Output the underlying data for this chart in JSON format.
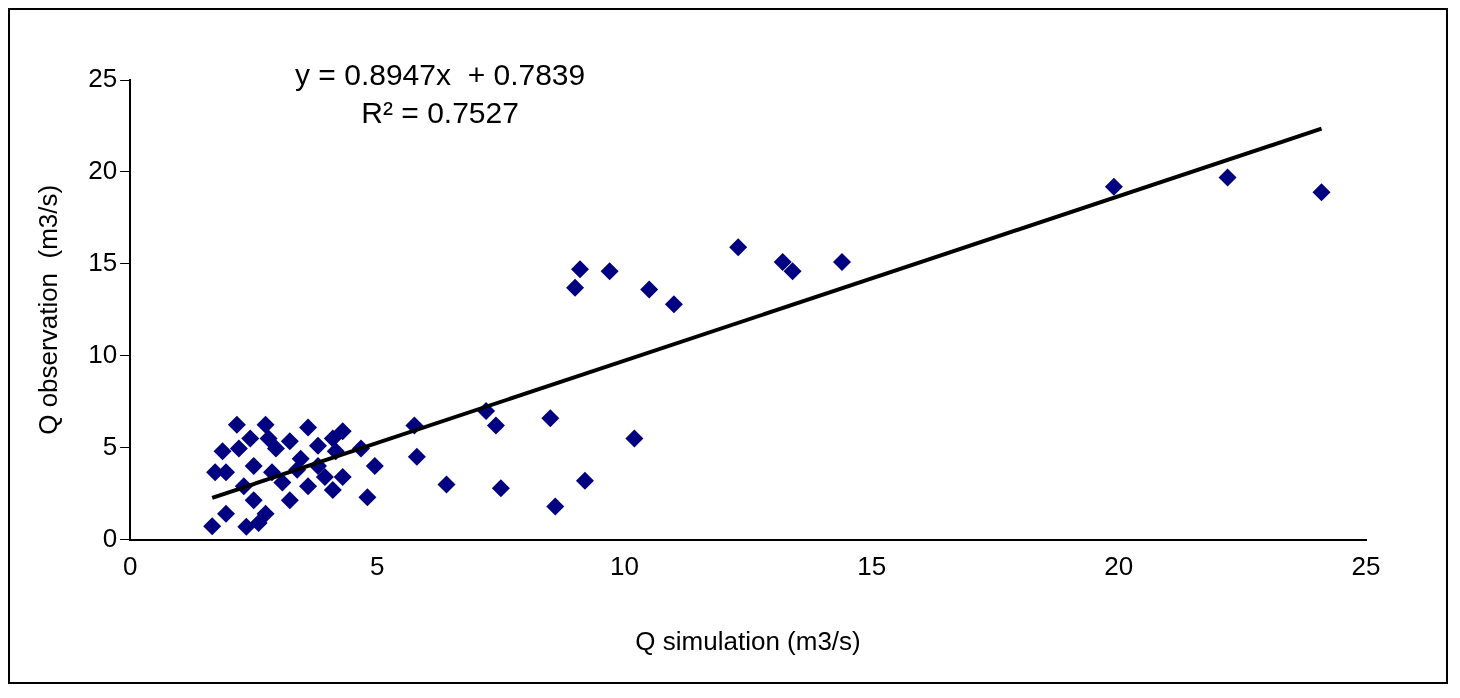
{
  "chart_data": {
    "type": "scatter",
    "xlabel": "Q simulation (m3/s)",
    "ylabel": "Q observation  (m3/s)",
    "xlim": [
      0,
      25
    ],
    "xticks": [
      0,
      5,
      10,
      15,
      20,
      25
    ],
    "ylim": [
      0,
      25
    ],
    "yticks": [
      0,
      5,
      10,
      15,
      20,
      25
    ],
    "grid": false,
    "legend": false,
    "marker": "diamond",
    "annotations": [
      "y = 0.8947x  + 0.7839",
      "R² = 0.7527"
    ],
    "series": [
      {
        "type": "scatter",
        "color": "#000080",
        "x": [
          1.66,
          2.16,
          2.74,
          3.6,
          4.3,
          3.45,
          1.94,
          2.5,
          2.2,
          2.95,
          3.08,
          2.5,
          1.94,
          2.35,
          2.74,
          3.8,
          4.1,
          4.8,
          4.95,
          4.67,
          4.16,
          3.23,
          3.8,
          3.6,
          2.87,
          2.3,
          1.72,
          3.23,
          4.3,
          3.94,
          3.38,
          2.8,
          2.43,
          1.87,
          4.1,
          2.6,
          5.75,
          5.8,
          6.4,
          7.2,
          7.4,
          8.5,
          10.2,
          7.5,
          8.6,
          9.2,
          9.0,
          9.1,
          9.7,
          10.5,
          11.0,
          12.3,
          13.2,
          13.4,
          14.4,
          19.9,
          22.2,
          24.1
        ],
        "values": [
          0.73,
          6.25,
          6.25,
          6.1,
          5.9,
          4.4,
          3.66,
          4.0,
          4.95,
          4.95,
          3.1,
          2.14,
          1.4,
          0.7,
          1.4,
          4.0,
          2.7,
          2.3,
          4.0,
          4.95,
          4.8,
          5.35,
          5.1,
          2.9,
          3.66,
          2.9,
          3.66,
          2.14,
          3.4,
          3.4,
          3.8,
          5.5,
          5.5,
          4.8,
          5.5,
          0.9,
          6.2,
          4.5,
          3.0,
          7.0,
          6.2,
          6.6,
          5.5,
          2.8,
          1.8,
          3.2,
          13.7,
          14.7,
          14.6,
          13.6,
          12.8,
          15.9,
          15.1,
          14.6,
          15.1,
          19.2,
          19.7,
          18.9
        ]
      },
      {
        "type": "line",
        "color": "#000000",
        "marker": "none",
        "x": [
          1.66,
          24.1
        ],
        "values": [
          2.27,
          22.35
        ]
      }
    ]
  }
}
